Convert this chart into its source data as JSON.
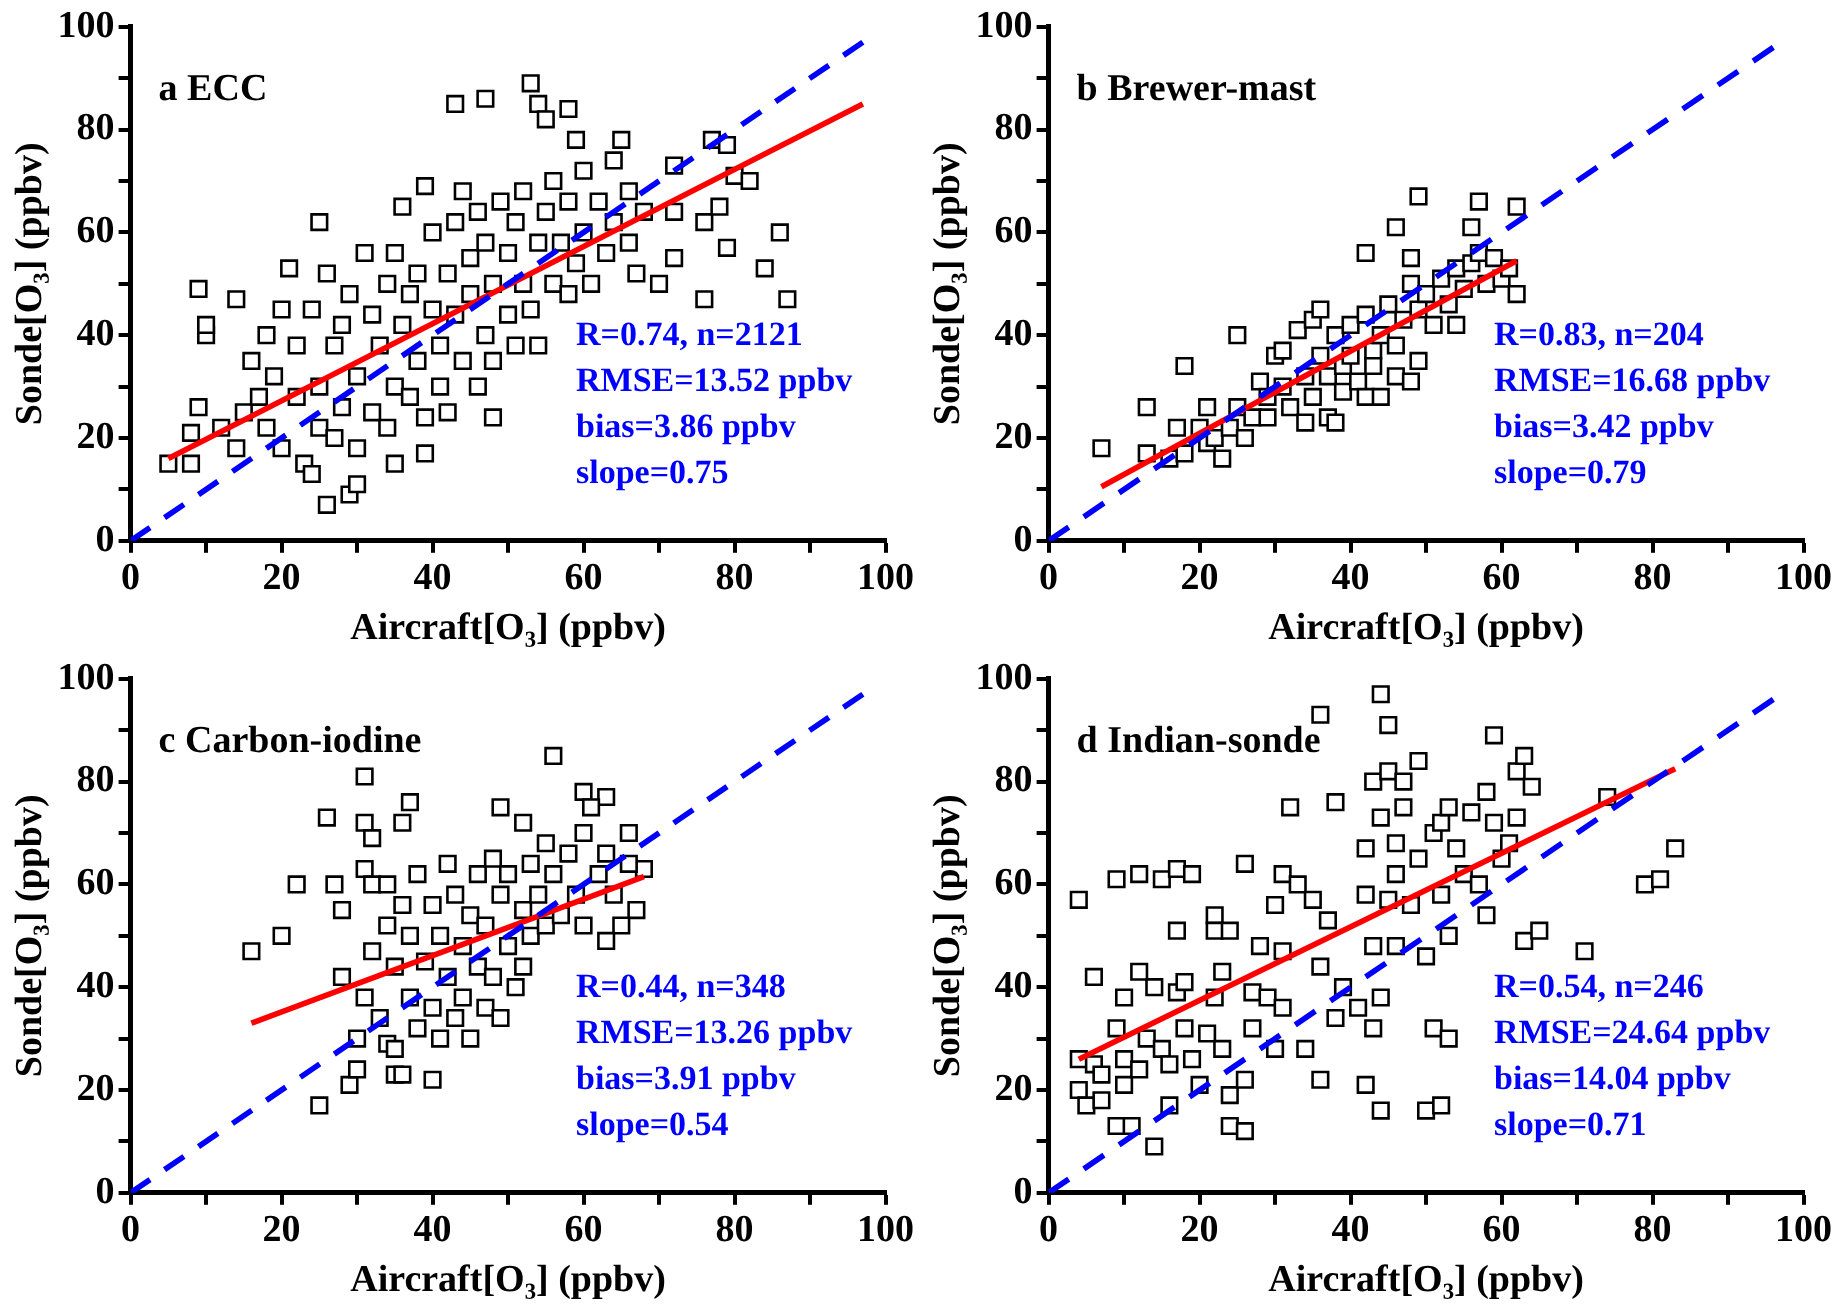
{
  "chart_data": [
    {
      "type": "scatter",
      "title": "a ECC",
      "xlabel": "Aircraft[O₃] (ppbv)",
      "ylabel": "Sonde[O₃] (ppbv)",
      "xlim": [
        0,
        100
      ],
      "ylim": [
        0,
        100
      ],
      "xticks": [
        0,
        {
          "value": 10,
          "label": null
        },
        20,
        {
          "value": 30,
          "label": null
        },
        40,
        {
          "value": 50,
          "label": null
        },
        60,
        {
          "value": 70,
          "label": null
        },
        80,
        {
          "value": 90,
          "label": null
        },
        100
      ],
      "yticks": [
        0,
        {
          "value": 10,
          "label": null
        },
        20,
        {
          "value": 30,
          "label": null
        },
        40,
        {
          "value": 50,
          "label": null
        },
        60,
        {
          "value": 70,
          "label": null
        },
        80,
        {
          "value": 90,
          "label": null
        },
        100
      ],
      "grid": false,
      "legend": false,
      "annotations": [
        "R=0.74, n=2121",
        "RMSE=13.52 ppbv",
        "bias=3.86 ppbv",
        "slope=0.75"
      ],
      "series": [
        {
          "marker": "square",
          "color": "#000000",
          "x": [
            5,
            8,
            8,
            9,
            10,
            10,
            14,
            9,
            25,
            26,
            29,
            30,
            39,
            35,
            39,
            36,
            43,
            47,
            48,
            53,
            54,
            55,
            58,
            59,
            72,
            72,
            76,
            77,
            79,
            80,
            82,
            76,
            78,
            79,
            84,
            86,
            87,
            12,
            14,
            15,
            16,
            17,
            18,
            18,
            19,
            20,
            20,
            21,
            22,
            22,
            23,
            24,
            24,
            25,
            25,
            26,
            27,
            27,
            28,
            28,
            29,
            30,
            30,
            31,
            32,
            32,
            33,
            34,
            34,
            35,
            35,
            36,
            37,
            37,
            38,
            38,
            39,
            40,
            40,
            41,
            41,
            42,
            42,
            43,
            43,
            44,
            44,
            45,
            45,
            46,
            46,
            47,
            47,
            48,
            48,
            49,
            50,
            50,
            51,
            51,
            52,
            52,
            53,
            54,
            54,
            55,
            56,
            56,
            57,
            58,
            58,
            59,
            60,
            60,
            61,
            62,
            63,
            64,
            64,
            65,
            66,
            66,
            67,
            68,
            70,
            72
          ],
          "values": [
            15,
            21,
            15,
            49,
            40,
            42,
            47,
            26,
            62,
            7,
            9,
            11,
            17,
            15,
            69,
            65,
            85,
            86,
            24,
            89,
            85,
            82,
            84,
            78,
            73,
            55,
            47,
            78,
            77,
            71,
            70,
            62,
            65,
            57,
            53,
            60,
            47,
            22,
            18,
            25,
            35,
            28,
            40,
            22,
            32,
            45,
            18,
            53,
            28,
            38,
            15,
            13,
            45,
            30,
            22,
            52,
            20,
            38,
            42,
            26,
            48,
            32,
            18,
            56,
            25,
            44,
            38,
            50,
            22,
            30,
            56,
            42,
            28,
            48,
            52,
            35,
            24,
            45,
            60,
            38,
            30,
            52,
            25,
            62,
            44,
            35,
            68,
            55,
            48,
            30,
            64,
            40,
            58,
            50,
            35,
            66,
            44,
            56,
            38,
            62,
            50,
            68,
            45,
            58,
            38,
            64,
            50,
            70,
            58,
            48,
            66,
            54,
            72,
            60,
            50,
            66,
            56,
            74,
            62,
            78,
            58,
            68,
            52,
            64,
            50,
            64
          ]
        },
        {
          "type": "line",
          "color": "#0000ff",
          "line_style": "dashed",
          "x": [
            0,
            97
          ],
          "values": [
            0,
            97
          ]
        },
        {
          "type": "line",
          "color": "#ff0000",
          "line_style": "solid",
          "x": [
            5,
            97
          ],
          "values": [
            16,
            85
          ]
        }
      ]
    },
    {
      "type": "scatter",
      "title": "b Brewer-mast",
      "xlabel": "Aircraft[O₃] (ppbv)",
      "ylabel": "Sonde[O₃] (ppbv)",
      "xlim": [
        0,
        100
      ],
      "ylim": [
        0,
        100
      ],
      "xticks": [
        0,
        {
          "value": 10,
          "label": null
        },
        20,
        {
          "value": 30,
          "label": null
        },
        40,
        {
          "value": 50,
          "label": null
        },
        60,
        {
          "value": 70,
          "label": null
        },
        80,
        {
          "value": 90,
          "label": null
        },
        100
      ],
      "yticks": [
        0,
        {
          "value": 10,
          "label": null
        },
        20,
        {
          "value": 30,
          "label": null
        },
        40,
        {
          "value": 50,
          "label": null
        },
        60,
        {
          "value": 70,
          "label": null
        },
        80,
        {
          "value": 90,
          "label": null
        },
        100
      ],
      "grid": false,
      "legend": false,
      "annotations": [
        "R=0.83, n=204",
        "RMSE=16.68 ppbv",
        "bias=3.42 ppbv",
        "slope=0.79"
      ],
      "series": [
        {
          "marker": "square",
          "color": "#000000",
          "x": [
            7,
            13,
            13,
            16,
            17,
            18,
            18,
            20,
            21,
            21,
            22,
            23,
            24,
            25,
            25,
            26,
            27,
            28,
            29,
            29,
            30,
            31,
            31,
            32,
            33,
            34,
            34,
            35,
            35,
            36,
            36,
            37,
            37,
            38,
            38,
            39,
            39,
            40,
            40,
            41,
            42,
            42,
            42,
            43,
            43,
            44,
            44,
            45,
            46,
            46,
            46,
            47,
            48,
            48,
            48,
            49,
            49,
            49,
            50,
            51,
            52,
            53,
            54,
            54,
            55,
            56,
            56,
            57,
            57,
            58,
            59,
            60,
            61,
            62,
            62
          ],
          "values": [
            18,
            17,
            26,
            16,
            22,
            34,
            17,
            22,
            26,
            19,
            20,
            16,
            22,
            40,
            26,
            20,
            24,
            31,
            24,
            28,
            36,
            37,
            30,
            26,
            41,
            23,
            32,
            43,
            28,
            45,
            36,
            24,
            32,
            23,
            40,
            34,
            29,
            42,
            36,
            31,
            44,
            28,
            56,
            37,
            34,
            28,
            40,
            46,
            61,
            38,
            32,
            43,
            50,
            31,
            55,
            35,
            67,
            45,
            48,
            42,
            51,
            46,
            53,
            42,
            49,
            61,
            54,
            66,
            56,
            50,
            55,
            51,
            53,
            48,
            65
          ]
        },
        {
          "type": "line",
          "color": "#0000ff",
          "line_style": "dashed",
          "x": [
            0,
            96
          ],
          "values": [
            0,
            96
          ]
        },
        {
          "type": "line",
          "color": "#ff0000",
          "line_style": "solid",
          "x": [
            7,
            62
          ],
          "values": [
            10.5,
            54.5
          ]
        }
      ]
    },
    {
      "type": "scatter",
      "title": "c Carbon-iodine",
      "xlabel": "Aircraft[O₃] (ppbv)",
      "ylabel": "Sonde[O₃] (ppbv)",
      "xlim": [
        0,
        100
      ],
      "ylim": [
        0,
        100
      ],
      "xticks": [
        0,
        {
          "value": 10,
          "label": null
        },
        20,
        {
          "value": 30,
          "label": null
        },
        40,
        {
          "value": 50,
          "label": null
        },
        60,
        {
          "value": 70,
          "label": null
        },
        80,
        {
          "value": 90,
          "label": null
        },
        100
      ],
      "yticks": [
        0,
        {
          "value": 10,
          "label": null
        },
        20,
        {
          "value": 30,
          "label": null
        },
        40,
        {
          "value": 50,
          "label": null
        },
        60,
        {
          "value": 70,
          "label": null
        },
        80,
        {
          "value": 90,
          "label": null
        },
        100
      ],
      "grid": false,
      "legend": false,
      "annotations": [
        "R=0.44, n=348",
        "RMSE=13.26 ppbv",
        "bias=3.91 ppbv",
        "slope=0.54"
      ],
      "series": [
        {
          "marker": "square",
          "color": "#000000",
          "x": [
            16,
            20,
            22,
            25,
            26,
            27,
            28,
            28,
            29,
            30,
            31,
            31,
            32,
            31,
            32,
            35,
            36,
            36,
            37,
            40,
            49,
            52,
            56,
            60,
            63,
            61,
            66,
            68,
            67,
            65,
            63,
            34,
            34,
            30,
            31,
            32,
            33,
            34,
            35,
            35,
            36,
            37,
            37,
            38,
            38,
            39,
            40,
            40,
            41,
            41,
            42,
            42,
            43,
            43,
            44,
            44,
            45,
            45,
            46,
            46,
            47,
            47,
            48,
            48,
            49,
            49,
            50,
            50,
            51,
            52,
            52,
            53,
            53,
            54,
            55,
            55,
            56,
            57,
            58,
            59,
            60,
            60,
            62,
            63,
            64,
            66
          ],
          "values": [
            47,
            50,
            60,
            17,
            73,
            60,
            42,
            55,
            21,
            24,
            81,
            72,
            69,
            63,
            60,
            23,
            23,
            72,
            76,
            22,
            75,
            72,
            85,
            78,
            77,
            75,
            70,
            63,
            55,
            52,
            49,
            29,
            60,
            30,
            38,
            47,
            34,
            52,
            28,
            44,
            56,
            38,
            50,
            32,
            62,
            45,
            36,
            56,
            30,
            50,
            64,
            42,
            34,
            58,
            48,
            38,
            54,
            30,
            62,
            44,
            36,
            52,
            65,
            42,
            58,
            34,
            48,
            62,
            40,
            55,
            44,
            64,
            50,
            58,
            52,
            68,
            62,
            54,
            66,
            58,
            70,
            52,
            62,
            66,
            58,
            64
          ]
        },
        {
          "type": "line",
          "color": "#0000ff",
          "line_style": "dashed",
          "x": [
            0,
            97
          ],
          "values": [
            0,
            97
          ]
        },
        {
          "type": "line",
          "color": "#ff0000",
          "line_style": "solid",
          "x": [
            16,
            68
          ],
          "values": [
            33,
            61.5
          ]
        }
      ]
    },
    {
      "type": "scatter",
      "title": "d Indian-sonde",
      "xlabel": "Aircraft[O₃] (ppbv)",
      "ylabel": "Sonde[O₃] (ppbv)",
      "xlim": [
        0,
        100
      ],
      "ylim": [
        0,
        100
      ],
      "xticks": [
        0,
        {
          "value": 10,
          "label": null
        },
        20,
        {
          "value": 30,
          "label": null
        },
        40,
        {
          "value": 50,
          "label": null
        },
        60,
        {
          "value": 70,
          "label": null
        },
        80,
        {
          "value": 90,
          "label": null
        },
        100
      ],
      "yticks": [
        0,
        {
          "value": 10,
          "label": null
        },
        20,
        {
          "value": 30,
          "label": null
        },
        40,
        {
          "value": 50,
          "label": null
        },
        60,
        {
          "value": 70,
          "label": null
        },
        80,
        {
          "value": 90,
          "label": null
        },
        100
      ],
      "grid": false,
      "legend": false,
      "annotations": [
        "R=0.54, n=246",
        "RMSE=24.64 ppbv",
        "bias=14.04 ppbv",
        "slope=0.71"
      ],
      "series": [
        {
          "marker": "square",
          "color": "#000000",
          "x": [
            4,
            4,
            4,
            5,
            6,
            6,
            7,
            7,
            9,
            9,
            9,
            10,
            10,
            10,
            11,
            12,
            12,
            12,
            13,
            14,
            14,
            15,
            15,
            16,
            16,
            17,
            17,
            17,
            18,
            18,
            19,
            19,
            20,
            21,
            22,
            22,
            22,
            23,
            23,
            24,
            24,
            24,
            26,
            26,
            26,
            27,
            27,
            28,
            29,
            30,
            30,
            31,
            31,
            31,
            32,
            33,
            34,
            35,
            36,
            36,
            36,
            37,
            38,
            38,
            39,
            41,
            42,
            42,
            42,
            43,
            43,
            43,
            44,
            44,
            44,
            44,
            45,
            45,
            45,
            46,
            46,
            46,
            47,
            47,
            48,
            49,
            49,
            50,
            50,
            51,
            51,
            52,
            52,
            52,
            53,
            53,
            53,
            54,
            55,
            56,
            57,
            58,
            58,
            59,
            59,
            60,
            61,
            62,
            62,
            63,
            63,
            64,
            65,
            74,
            79,
            81,
            83,
            71
          ],
          "values": [
            57,
            20,
            26,
            17,
            25,
            42,
            18,
            23,
            13,
            32,
            61,
            26,
            38,
            21,
            13,
            43,
            24,
            62,
            30,
            40,
            9,
            61,
            28,
            17,
            25,
            63,
            51,
            39,
            32,
            41,
            26,
            62,
            21,
            31,
            54,
            38,
            51,
            28,
            43,
            13,
            19,
            51,
            22,
            64,
            12,
            39,
            32,
            48,
            38,
            56,
            28,
            47,
            36,
            62,
            75,
            60,
            28,
            57,
            44,
            22,
            93,
            53,
            76,
            34,
            40,
            36,
            21,
            58,
            67,
            80,
            48,
            32,
            97,
            73,
            38,
            16,
            91,
            57,
            82,
            68,
            48,
            62,
            75,
            80,
            56,
            84,
            65,
            46,
            16,
            32,
            70,
            72,
            58,
            17,
            75,
            50,
            30,
            67,
            62,
            74,
            60,
            78,
            54,
            89,
            72,
            65,
            68,
            73,
            82,
            85,
            49,
            79,
            51,
            77,
            60,
            61,
            67,
            47
          ]
        },
        {
          "type": "line",
          "color": "#0000ff",
          "line_style": "dashed",
          "x": [
            0,
            96
          ],
          "values": [
            0,
            96
          ]
        },
        {
          "type": "line",
          "color": "#ff0000",
          "line_style": "solid",
          "x": [
            4,
            83
          ],
          "values": [
            26,
            82.5
          ]
        }
      ]
    }
  ]
}
